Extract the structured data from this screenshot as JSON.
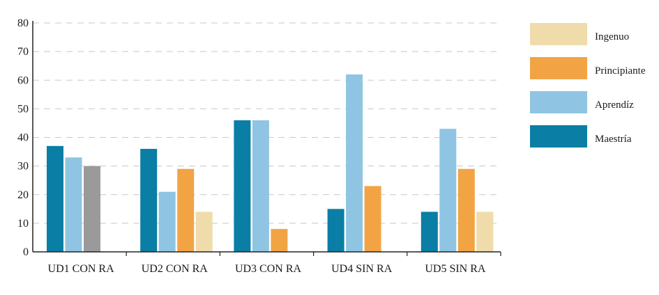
{
  "chart_data": {
    "type": "bar",
    "categories": [
      "UD1 CON RA",
      "UD2 CON RA",
      "UD3 CON RA",
      "UD4 SIN RA",
      "UD5 SIN RA"
    ],
    "series": [
      {
        "name": "Maestría",
        "color": "#0a7ea4",
        "values": [
          37,
          36,
          46,
          15,
          14
        ]
      },
      {
        "name": "Aprendíz",
        "color": "#8fc5e2",
        "values": [
          33,
          21,
          46,
          62,
          43
        ]
      },
      {
        "name": "Principiante",
        "color": "#f2a444",
        "values": [
          null,
          29,
          8,
          23,
          29
        ]
      },
      {
        "name": "Ingenuo",
        "color": "#f0dcaa",
        "values": [
          null,
          14,
          null,
          null,
          14
        ]
      }
    ],
    "extra_bars": [
      {
        "category": "UD1 CON RA",
        "value": 30,
        "color": "#9a9a9a"
      }
    ],
    "legend": {
      "placement": "right",
      "entries": [
        {
          "label": "Ingenuo",
          "color": "#f0dcaa"
        },
        {
          "label": "Principiante",
          "color": "#f2a444"
        },
        {
          "label": "Aprendíz",
          "color": "#8fc5e2"
        },
        {
          "label": "Maestría",
          "color": "#0a7ea4"
        }
      ]
    },
    "yticks": [
      "0",
      "10",
      "20",
      "30",
      "40",
      "50",
      "60",
      "70",
      "80"
    ],
    "ylim": [
      0,
      80
    ],
    "grid": true,
    "title": "",
    "xlabel": "",
    "ylabel": ""
  }
}
